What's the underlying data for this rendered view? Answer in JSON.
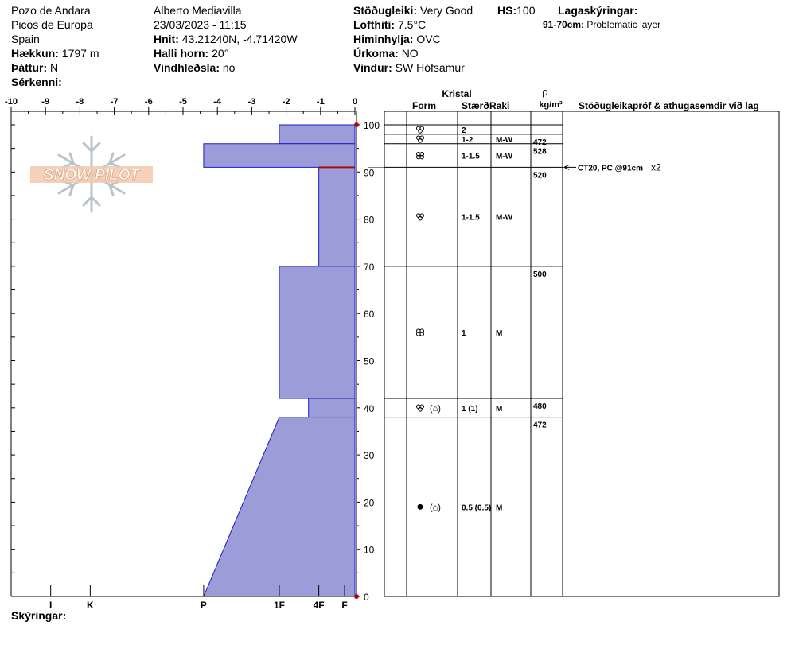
{
  "header": {
    "location": "Pozo de Andara",
    "range": "Picos de Europa",
    "country": "Spain",
    "elevation_label": "Hækkun:",
    "elevation": "1797 m",
    "aspect_label": "Þáttur:",
    "aspect": "N",
    "specifics_label": "Sérkenni:",
    "observer": "Alberto Mediavilla",
    "datetime": "23/03/2023 - 11:15",
    "coords_label": "Hnit:",
    "coords": "43.21240N, -4.71420W",
    "slope_label": "Halli horn:",
    "slope": "20°",
    "wind_loading_label": "Vindhleðsla:",
    "wind_loading": "no",
    "stability_label": "Stöðugleiki:",
    "stability": "Very Good",
    "hs_label": "HS:",
    "hs": "100",
    "air_temp_label": "Lofthiti:",
    "air_temp": "7.5°C",
    "sky_label": "Himinhylja:",
    "sky": "OVC",
    "precip_label": "Úrkoma:",
    "precip": "NO",
    "wind_label": "Vindur:",
    "wind": "SW Hófsamur",
    "layer_notes_label": "Lagaskýringar:",
    "layer_note_range": "91-70cm:",
    "layer_note_text": "Problematic layer"
  },
  "logo": {
    "text": "SNOW PILOT"
  },
  "footer": {
    "notes_label": "Skýringar:"
  },
  "table": {
    "kristal_label": "Kristal",
    "form_label": "Form",
    "size_label": "Stærð",
    "moisture_label": "Raki",
    "rho_label": "ρ",
    "density_unit": "kg/m³",
    "tests_label": "Stöðugleikapróf & athugasemdir við lag",
    "test_result": "CT20, PC @91cm",
    "test_count": "x2"
  },
  "chart_data": {
    "type": "snow-profile",
    "x_ticks": [
      -10,
      -9,
      -8,
      -7,
      -6,
      -5,
      -4,
      -3,
      -2,
      -1,
      0
    ],
    "x_range": [
      -10,
      0
    ],
    "y_ticks": [
      0,
      10,
      20,
      30,
      40,
      50,
      60,
      70,
      80,
      90,
      100
    ],
    "y_range": [
      0,
      100
    ],
    "hardness_ticks": [
      {
        "label": "I",
        "x": -8.85
      },
      {
        "label": "K",
        "x": -7.7
      },
      {
        "label": "P",
        "x": -4.4
      },
      {
        "label": "1F",
        "x": -2.2
      },
      {
        "label": "4F",
        "x": -1.05
      },
      {
        "label": "F",
        "x": -0.3
      }
    ],
    "hardness_layers": [
      {
        "top": 100,
        "bottom": 96,
        "x_top": -2.2,
        "x_bottom": -2.2
      },
      {
        "top": 96,
        "bottom": 91,
        "x_top": -4.4,
        "x_bottom": -4.4
      },
      {
        "top": 91,
        "bottom": 70,
        "x_top": -1.05,
        "x_bottom": -1.05
      },
      {
        "top": 70,
        "bottom": 42,
        "x_top": -2.2,
        "x_bottom": -2.2
      },
      {
        "top": 42,
        "bottom": 38,
        "x_top": -1.35,
        "x_bottom": -1.35
      },
      {
        "top": 38,
        "bottom": 0,
        "x_top": -2.2,
        "x_bottom": -4.4
      }
    ],
    "weak_layer": 91,
    "layers": [
      {
        "top": 100,
        "bottom": 98,
        "form": "melt-form",
        "size": "2",
        "moisture": "",
        "density": ""
      },
      {
        "top": 98,
        "bottom": 96,
        "form": "melt-form",
        "size": "1-2",
        "moisture": "M-W",
        "density": "472"
      },
      {
        "top": 96,
        "bottom": 91,
        "form": "melt-cluster",
        "size": "1-1.5",
        "moisture": "M-W",
        "density": "528"
      },
      {
        "top": 91,
        "bottom": 70,
        "form": "melt-form",
        "size": "1-1.5",
        "moisture": "M-W",
        "density": "520"
      },
      {
        "top": 70,
        "bottom": 42,
        "form": "melt-cluster",
        "size": "1",
        "moisture": "M",
        "density": "500"
      },
      {
        "top": 42,
        "bottom": 38,
        "form": "melt-form",
        "form2": "(⌂)",
        "size": "1 (1)",
        "moisture": "M",
        "density": "480"
      },
      {
        "top": 38,
        "bottom": 0,
        "form": "rounded",
        "form2": "(⌂)",
        "size": "0.5 (0.5)",
        "moisture": "M",
        "density": "472"
      }
    ]
  },
  "colors": {
    "fill": "#9c9cd8",
    "stroke": "#1a1acc",
    "marker": "#a01010"
  }
}
